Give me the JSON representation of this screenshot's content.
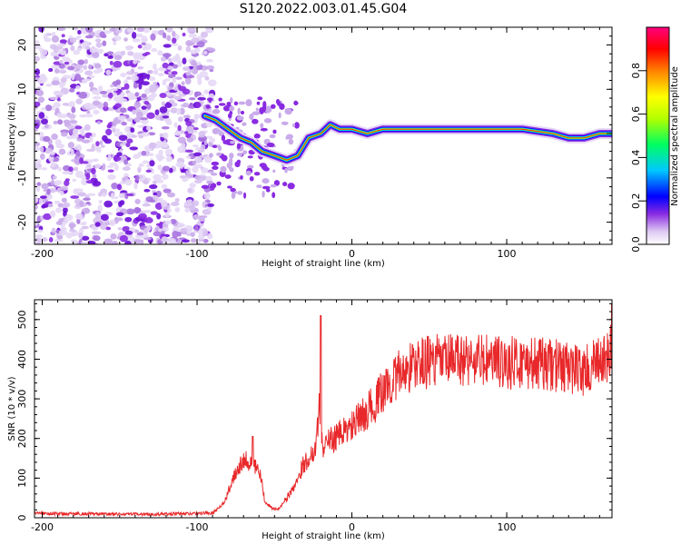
{
  "title": "S120.2022.003.01.45.G04",
  "chart_data": [
    {
      "type": "heatmap",
      "xlabel": "Height of straight line (km)",
      "ylabel": "Frequency (Hz)",
      "xlim": [
        -205,
        168
      ],
      "ylim": [
        -25,
        24
      ],
      "x_ticks": [
        -200,
        -100,
        0,
        100
      ],
      "x_tick_labels": [
        "-200",
        "-100",
        "0",
        "100"
      ],
      "y_ticks": [
        -20,
        -10,
        0,
        10,
        20
      ],
      "y_tick_labels": [
        "-20",
        "-10",
        "0",
        "10",
        "20"
      ],
      "colorscale": [
        "#ffffff",
        "#ddc8f2",
        "#8a2be2",
        "#0000ff",
        "#00c8ff",
        "#00ff60",
        "#b4ff00",
        "#ffff00",
        "#ff8000",
        "#ff0000",
        "#ff007f"
      ],
      "colorbar": {
        "label": "Normalized spectral amplitude",
        "ticks": [
          0.0,
          0.2,
          0.4,
          0.6,
          0.8
        ],
        "tick_labels": [
          "0.0",
          "0.2",
          "0.4",
          "0.6",
          "0.8"
        ],
        "range": [
          0,
          1
        ]
      },
      "ridge": {
        "x": [
          -95,
          -88,
          -80,
          -72,
          -65,
          -58,
          -50,
          -42,
          -35,
          -28,
          -20,
          -14,
          -8,
          0,
          10,
          20,
          40,
          80,
          110,
          130,
          140,
          150,
          160,
          168
        ],
        "y": [
          4,
          3,
          1,
          -1,
          -2,
          -4,
          -5,
          -6,
          -5,
          -1,
          0,
          2,
          1,
          1,
          0,
          1,
          1,
          1,
          1,
          0,
          -1,
          -1,
          0,
          0
        ]
      },
      "grid": false
    },
    {
      "type": "line",
      "xlabel": "Height of straight line (km)",
      "ylabel": "SNR (10 * v/v)",
      "xlim": [
        -205,
        168
      ],
      "ylim": [
        0,
        550
      ],
      "x_ticks": [
        -200,
        -100,
        0,
        100
      ],
      "x_tick_labels": [
        "-200",
        "-100",
        "0",
        "100"
      ],
      "y_ticks": [
        0,
        100,
        200,
        300,
        400,
        500
      ],
      "y_tick_labels": [
        "0",
        "100",
        "200",
        "300",
        "400",
        "500"
      ],
      "color": "#e8282a",
      "series": [
        {
          "x": [
            -205,
            -190,
            -170,
            -150,
            -130,
            -110,
            -90,
            -82,
            -76,
            -70,
            -65,
            -60,
            -56,
            -52,
            -48,
            -44,
            -40,
            -36,
            -32,
            -28,
            -24,
            -21,
            -19,
            -16,
            -12,
            -8,
            -4,
            0,
            5,
            10,
            15,
            20,
            25,
            30,
            35,
            40,
            45,
            50,
            60,
            70,
            80,
            90,
            100,
            110,
            120,
            130,
            140,
            145,
            150,
            155,
            160,
            165,
            168
          ],
          "y": [
            12,
            10,
            10,
            9,
            9,
            10,
            12,
            40,
            110,
            150,
            140,
            120,
            40,
            25,
            20,
            40,
            60,
            90,
            130,
            150,
            170,
            280,
            180,
            190,
            200,
            210,
            220,
            230,
            250,
            270,
            290,
            320,
            340,
            360,
            375,
            385,
            390,
            395,
            395,
            400,
            398,
            395,
            390,
            392,
            388,
            385,
            380,
            375,
            370,
            380,
            390,
            400,
            420
          ]
        }
      ],
      "spikes": [
        {
          "x": -20,
          "y": 510
        },
        {
          "x": -64,
          "y": 205
        },
        {
          "x": 168,
          "y": 540
        }
      ],
      "grid": false
    }
  ]
}
